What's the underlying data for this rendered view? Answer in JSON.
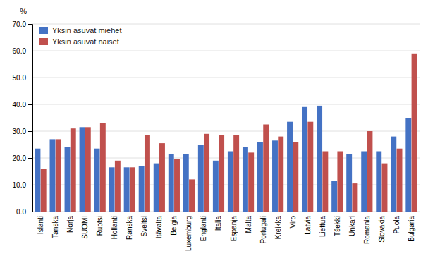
{
  "chart_data": {
    "type": "bar",
    "y_label": "%",
    "categories": [
      "Islanti",
      "Tanska",
      "Norja",
      "SUOMI",
      "Ruotsi",
      "Hollanti",
      "Ranska",
      "Sveitsi",
      "Itävalta",
      "Belgia",
      "Luxemburg",
      "Englanti",
      "Italia",
      "Espanja",
      "Malta",
      "Portugali",
      "Kreikka",
      "Viro",
      "Latvia",
      "Liettua",
      "Tšekki",
      "Unkari",
      "Romania",
      "Slovakia",
      "Puola",
      "Bulgaria"
    ],
    "series": [
      {
        "name": "Yksin asuvat miehet",
        "color": "#4472C4",
        "values": [
          23.5,
          27.0,
          24.0,
          31.5,
          23.5,
          16.5,
          16.5,
          17.0,
          18.0,
          21.5,
          21.5,
          25.0,
          19.0,
          22.5,
          24.0,
          26.0,
          26.5,
          33.5,
          39.0,
          39.5,
          11.5,
          21.5,
          22.5,
          22.5,
          28.0,
          35.0
        ]
      },
      {
        "name": "Yksin asuvat naiset",
        "color": "#C0504D",
        "values": [
          16.0,
          27.0,
          31.0,
          31.5,
          33.0,
          19.0,
          16.5,
          28.5,
          25.5,
          19.5,
          12.0,
          29.0,
          28.5,
          28.5,
          22.0,
          32.5,
          28.0,
          26.0,
          33.5,
          22.5,
          22.5,
          10.5,
          30.0,
          18.0,
          23.5,
          59.0
        ]
      }
    ],
    "ylim": [
      0,
      70
    ],
    "yticks": [
      {
        "value": 0,
        "label": "0.0"
      },
      {
        "value": 10,
        "label": "10.0"
      },
      {
        "value": 20,
        "label": "20.0"
      },
      {
        "value": 30,
        "label": "30.0"
      },
      {
        "value": 40,
        "label": "40.0"
      },
      {
        "value": 50,
        "label": "50.0"
      },
      {
        "value": 60,
        "label": "60.0"
      },
      {
        "value": 70,
        "label": "70.0"
      }
    ],
    "grid": true,
    "legend": "upper left"
  }
}
